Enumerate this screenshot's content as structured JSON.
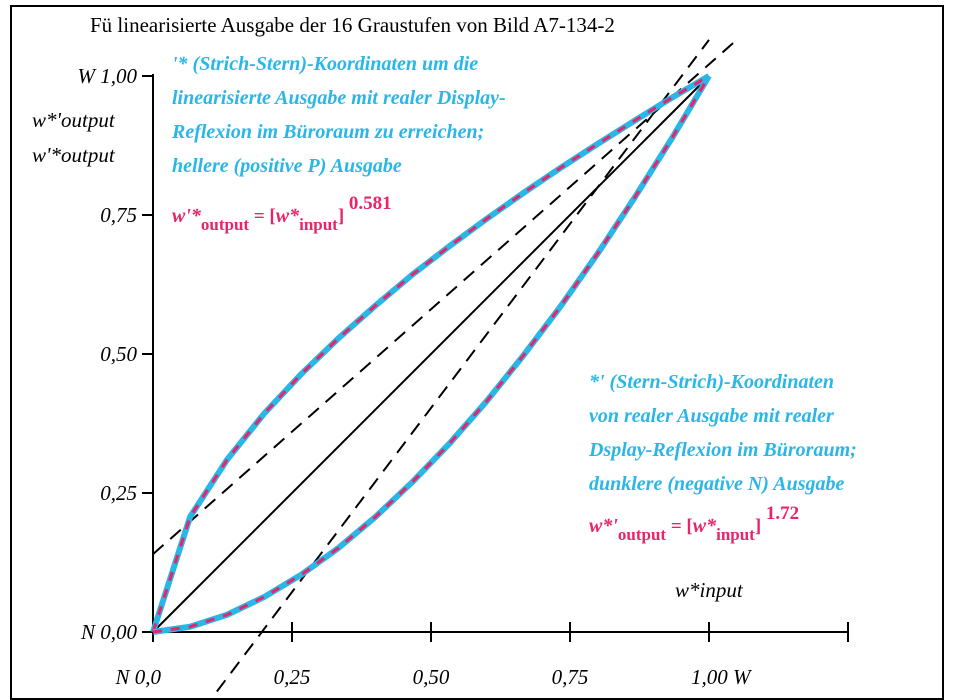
{
  "title": "Fü linearisierte Ausgabe der 16 Graustufen von Bild A7-134-2",
  "chart_data": {
    "type": "line",
    "xlim": [
      0,
      1
    ],
    "ylim": [
      0,
      1
    ],
    "x_ticks": [
      {
        "value": 0,
        "label": "N  0,0"
      },
      {
        "value": 0.25,
        "label": "0,25"
      },
      {
        "value": 0.5,
        "label": "0,50"
      },
      {
        "value": 0.75,
        "label": "0,75"
      },
      {
        "value": 1,
        "label": "1,00  W"
      }
    ],
    "y_ticks": [
      {
        "value": 0,
        "label": "N 0,00"
      },
      {
        "value": 0.25,
        "label": "0,25"
      },
      {
        "value": 0.5,
        "label": "0,50"
      },
      {
        "value": 0.75,
        "label": "0,75"
      },
      {
        "value": 1,
        "label": "W 1,00"
      }
    ],
    "ylabel": [
      "w*'output",
      "w'*output"
    ],
    "xlabel": "w*input",
    "series": [
      {
        "exponent": 0.581,
        "x": [
          0,
          0.0667,
          0.1333,
          0.2,
          0.2667,
          0.3333,
          0.4,
          0.4667,
          0.5333,
          0.6,
          0.6667,
          0.7333,
          0.8,
          0.8667,
          0.9333,
          1
        ],
        "y": [
          0,
          0.207,
          0.31,
          0.393,
          0.464,
          0.528,
          0.587,
          0.643,
          0.694,
          0.743,
          0.79,
          0.835,
          0.878,
          0.92,
          0.961,
          1
        ]
      },
      {
        "exponent": 1.72,
        "x": [
          0,
          0.0667,
          0.1333,
          0.2,
          0.2667,
          0.3333,
          0.4,
          0.4667,
          0.5333,
          0.6,
          0.6667,
          0.7333,
          0.8,
          0.8667,
          0.9333,
          1
        ],
        "y": [
          0,
          0.0095,
          0.031,
          0.063,
          0.103,
          0.151,
          0.207,
          0.27,
          0.339,
          0.415,
          0.498,
          0.586,
          0.681,
          0.782,
          0.888,
          1
        ]
      }
    ],
    "reference_lines": [
      {
        "style": "solid",
        "x": [
          0,
          1
        ],
        "y": [
          0,
          1
        ]
      },
      {
        "style": "dashed",
        "x": [
          0,
          1.05
        ],
        "y": [
          0.14,
          1.065
        ]
      },
      {
        "style": "dashed",
        "x": [
          0.09,
          1.0
        ],
        "y": [
          -0.14,
          1.065
        ]
      }
    ],
    "annotations": {
      "upper_text": [
        "'* (Strich-Stern)-Koordinaten um die",
        "linearisierte Ausgabe mit realer Display-",
        "Reflexion im Büroraum zu erreichen;",
        "hellere (positive P) Ausgabe"
      ],
      "upper_formula": {
        "lhs": "w'*",
        "lhs_sub": "output",
        "eq": " = [",
        "var": "w*",
        "var_sub": "input",
        "close": "]",
        "exp": "0.581"
      },
      "lower_text": [
        "*' (Stern-Strich)-Koordinaten",
        "von realer Ausgabe mit realer",
        "Dsplay-Reflexion im Büroraum;",
        "dunklere (negative N) Ausgabe"
      ],
      "lower_formula": {
        "lhs": "w*'",
        "lhs_sub": "output",
        "eq": " = [",
        "var": "w*",
        "var_sub": "input",
        "close": "]",
        "exp": "1.72"
      }
    },
    "colors": {
      "curve_outer": "#2ab6e6",
      "curve_inner": "#e8246a",
      "text_cyan": "#2ab6e6",
      "text_magenta": "#e8246a"
    },
    "grid": false
  }
}
